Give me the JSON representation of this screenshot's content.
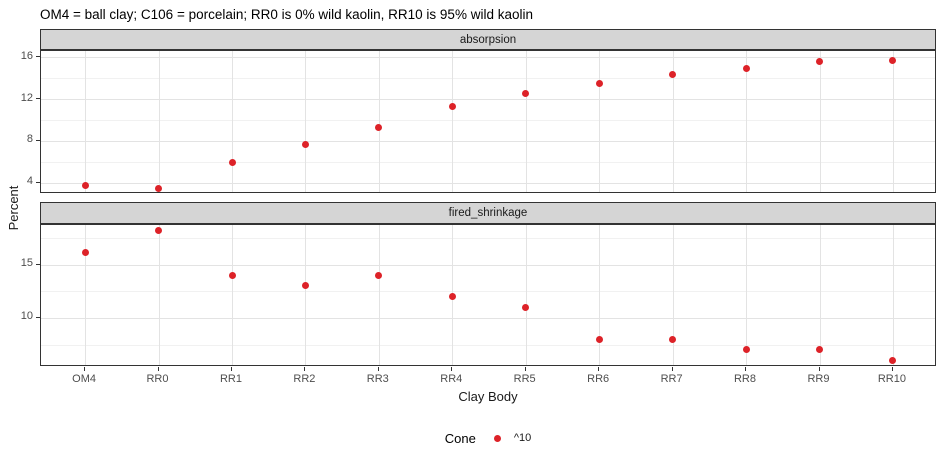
{
  "title": "OM4 = ball clay; C106 = porcelain; RR0 is 0% wild kaolin, RR10 is 95% wild kaolin",
  "axes": {
    "x_label": "Clay Body",
    "y_label": "Percent"
  },
  "legend": {
    "title": "Cone",
    "items": [
      {
        "label": "^10",
        "color": "#dd2228"
      }
    ]
  },
  "colors": {
    "point": "#dd2228",
    "strip_fill": "#d5d5d5",
    "strip_border": "#333333",
    "panel_border": "#333333",
    "grid_major": "#e3e3e3",
    "grid_minor": "#f1f1f1",
    "axis_text": "#4d4d4d",
    "tick_mark": "#333333"
  },
  "chart_data": [
    {
      "type": "scatter",
      "facet": "absorpsion",
      "xlabel": "Clay Body",
      "ylabel": "Percent",
      "legend_series": "Cone ^10",
      "categories": [
        "OM4",
        "RR0",
        "RR1",
        "RR2",
        "RR3",
        "RR4",
        "RR5",
        "RR6",
        "RR7",
        "RR8",
        "RR9",
        "RR10"
      ],
      "values": [
        3.7,
        3.4,
        5.9,
        7.6,
        9.3,
        11.3,
        12.5,
        13.5,
        14.4,
        14.9,
        15.6,
        15.7
      ],
      "ylim": [
        2.9,
        16.6
      ],
      "yticks": [
        4,
        8,
        12,
        16
      ],
      "yminor": [
        6,
        10,
        14
      ],
      "grid": true,
      "legend_position": "bottom"
    },
    {
      "type": "scatter",
      "facet": "fired_shrinkage",
      "xlabel": "Clay Body",
      "ylabel": "Percent",
      "legend_series": "Cone ^10",
      "categories": [
        "OM4",
        "RR0",
        "RR1",
        "RR2",
        "RR3",
        "RR4",
        "RR5",
        "RR6",
        "RR7",
        "RR8",
        "RR9",
        "RR10"
      ],
      "values": [
        16.1,
        18.2,
        14.0,
        13.0,
        14.0,
        12.0,
        11.0,
        8.0,
        8.0,
        7.0,
        7.0,
        6.0
      ],
      "ylim": [
        5.4,
        18.7
      ],
      "yticks": [
        10,
        15
      ],
      "yminor": [
        7.5,
        12.5,
        17.5
      ],
      "grid": true,
      "legend_position": "bottom"
    }
  ]
}
